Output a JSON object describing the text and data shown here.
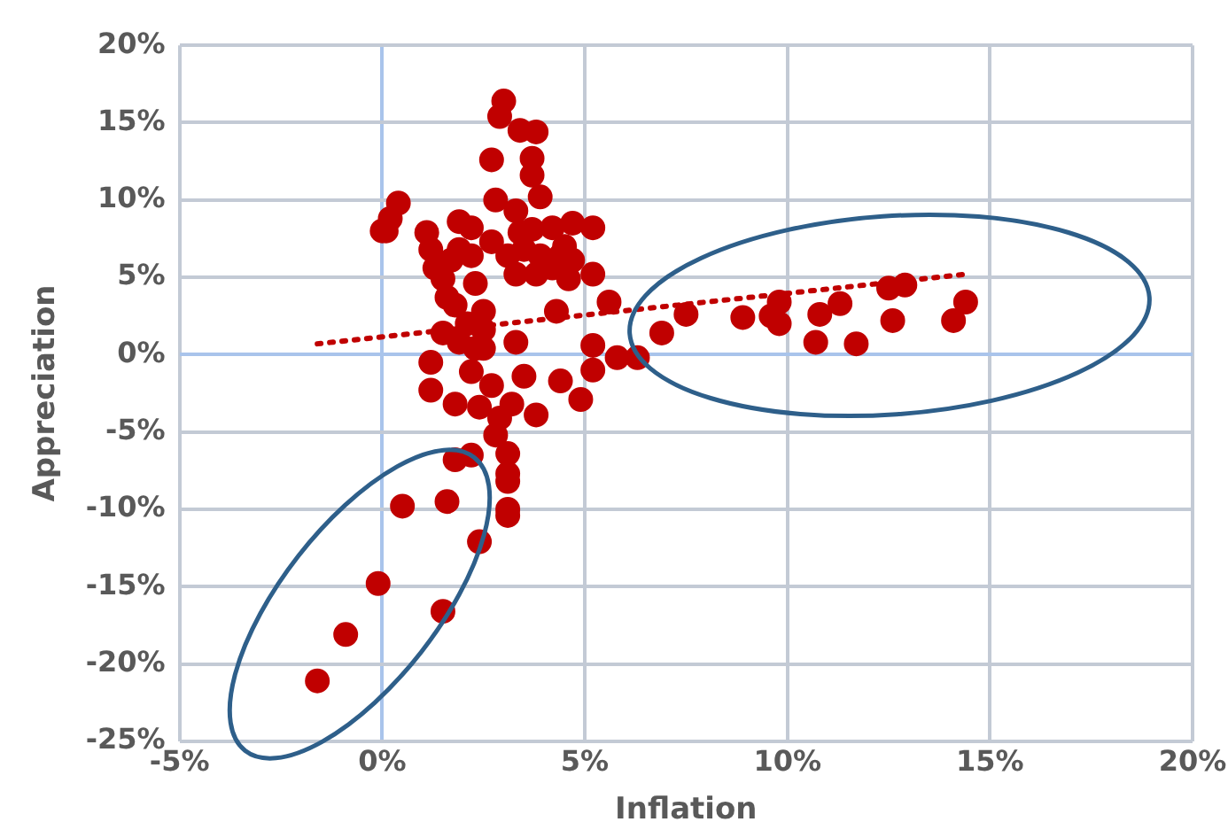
{
  "chart_data": {
    "type": "scatter",
    "xlabel": "Inflation",
    "ylabel": "Appreciation",
    "xlim": [
      -5,
      20
    ],
    "xticks": [
      {
        "value": -5,
        "label": "-5%"
      },
      {
        "value": 0,
        "label": "0%"
      },
      {
        "value": 5,
        "label": "5%"
      },
      {
        "value": 10,
        "label": "10%"
      },
      {
        "value": 15,
        "label": "15%"
      },
      {
        "value": 20,
        "label": "20%"
      }
    ],
    "ylim": [
      -25,
      20
    ],
    "yticks": [
      {
        "value": -25,
        "label": "-25%"
      },
      {
        "value": -20,
        "label": "-20%"
      },
      {
        "value": -15,
        "label": "-15%"
      },
      {
        "value": -10,
        "label": "-10%"
      },
      {
        "value": -5,
        "label": "-5%"
      },
      {
        "value": 0,
        "label": "0%"
      },
      {
        "value": 5,
        "label": "5%"
      },
      {
        "value": 10,
        "label": "10%"
      },
      {
        "value": 15,
        "label": "15%"
      },
      {
        "value": 20,
        "label": "20%"
      }
    ],
    "grid": true,
    "series": [
      {
        "marker": "circle",
        "color": "#c00000",
        "x": [
          -1.6,
          -0.9,
          -0.1,
          0.5,
          1.5,
          2.4,
          1.6,
          1.8,
          2.2,
          3.1,
          3.1,
          3.1,
          3.1,
          3.1,
          2.8,
          3.8,
          4.4,
          4.9,
          5.2,
          5.2,
          5.8,
          6.3,
          1.2,
          1.2,
          1.8,
          5.2,
          5.2,
          5.6,
          6.9,
          7.5,
          8.9,
          9.6,
          9.8,
          9.8,
          10.7,
          10.8,
          11.3,
          11.7,
          12.5,
          12.9,
          12.6,
          14.1,
          14.4,
          3.0,
          2.9,
          3.4,
          3.8,
          2.7,
          3.7,
          3.7,
          2.8,
          3.9,
          3.3,
          0.4,
          0.2,
          0.0,
          0.1,
          1.9,
          2.2,
          1.1,
          4.7,
          4.2,
          3.7,
          3.4,
          2.7,
          1.2,
          1.7,
          1.9,
          2.2,
          3.1,
          3.5,
          3.9,
          4.4,
          4.5,
          4.7,
          4.6,
          3.8,
          3.3,
          4.2,
          2.3,
          1.5,
          1.3,
          1.6,
          1.8,
          4.3,
          2.5,
          1.5,
          2.1,
          2.5,
          1.9,
          2.3,
          3.3,
          2.4,
          2.9,
          3.2,
          3.5,
          2.5,
          2.2,
          2.7
        ],
        "values": [
          -21.1,
          -18.1,
          -14.8,
          -9.8,
          -16.6,
          -12.1,
          -9.5,
          -6.8,
          -6.5,
          -6.4,
          -7.7,
          -8.2,
          -10.0,
          -10.4,
          -5.2,
          -3.9,
          -1.7,
          -2.9,
          0.6,
          -1.0,
          -0.2,
          -0.2,
          -0.5,
          -2.3,
          -3.2,
          8.2,
          5.2,
          3.4,
          1.4,
          2.6,
          2.4,
          2.5,
          2.0,
          3.4,
          0.8,
          2.6,
          3.3,
          0.7,
          4.3,
          4.5,
          2.2,
          2.2,
          3.4,
          16.4,
          15.4,
          14.5,
          14.4,
          12.6,
          12.7,
          11.6,
          10.0,
          10.2,
          9.3,
          9.8,
          8.8,
          8.0,
          8.0,
          8.6,
          8.2,
          7.9,
          8.5,
          8.2,
          8.1,
          7.9,
          7.3,
          6.8,
          6.1,
          6.8,
          6.4,
          6.4,
          6.8,
          6.4,
          6.4,
          7.0,
          6.1,
          4.9,
          5.2,
          5.2,
          5.6,
          4.6,
          4.9,
          5.6,
          3.7,
          3.2,
          2.8,
          2.8,
          1.4,
          2.0,
          1.6,
          0.8,
          0.4,
          0.8,
          -3.4,
          -4.1,
          -3.2,
          -1.4,
          0.4,
          -1.1,
          -2.0
        ]
      },
      {
        "type": "line",
        "marker": "none",
        "color": "#c00000",
        "line_style": "dotted",
        "x": [
          -1.6,
          14.4
        ],
        "values": [
          0.7,
          5.2
        ]
      }
    ]
  }
}
